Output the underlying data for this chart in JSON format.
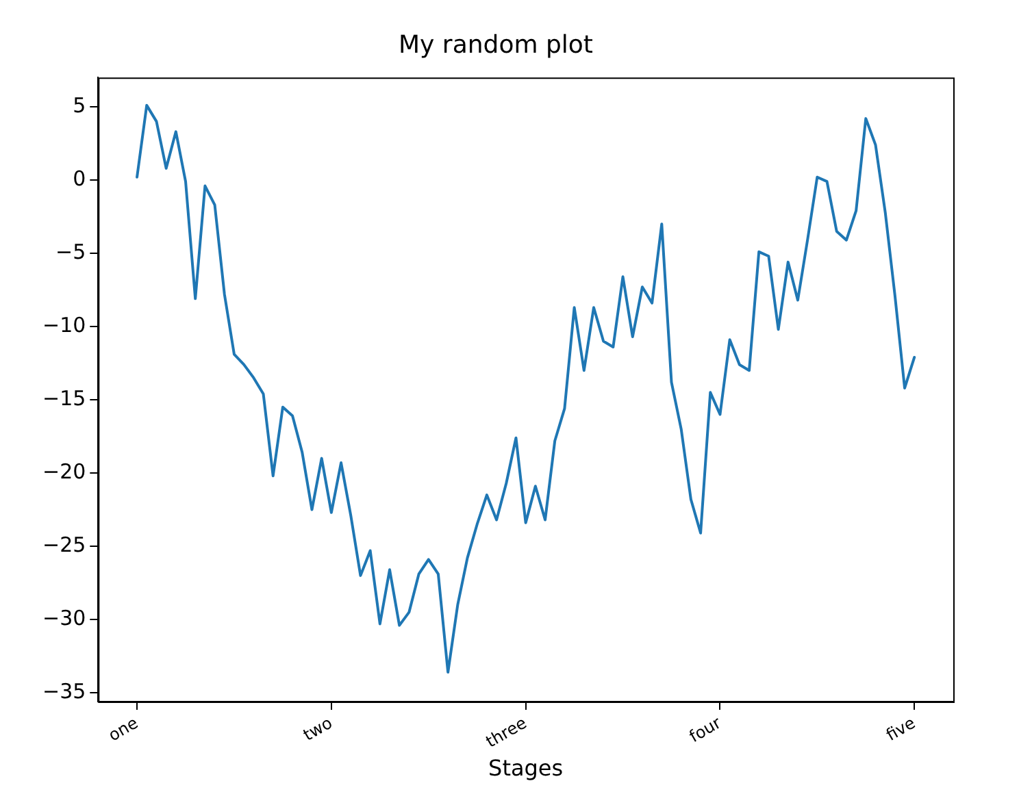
{
  "chart_data": {
    "type": "line",
    "title": "My random plot",
    "xlabel": "Stages",
    "categories": [
      "one",
      null,
      null,
      null,
      null,
      null,
      null,
      null,
      null,
      null,
      null,
      null,
      null,
      null,
      null,
      null,
      null,
      null,
      null,
      null,
      "two",
      null,
      null,
      null,
      null,
      null,
      null,
      null,
      null,
      null,
      null,
      null,
      null,
      null,
      null,
      null,
      null,
      null,
      null,
      null,
      "three",
      null,
      null,
      null,
      null,
      null,
      null,
      null,
      null,
      null,
      null,
      null,
      null,
      null,
      null,
      null,
      null,
      null,
      null,
      null,
      "four",
      null,
      null,
      null,
      null,
      null,
      null,
      null,
      null,
      null,
      null,
      null,
      null,
      null,
      null,
      null,
      null,
      null,
      null,
      null,
      "five"
    ],
    "ylim": [
      -35.6,
      7.0
    ],
    "yticks": [
      -35,
      -30,
      -25,
      -20,
      -15,
      -10,
      -5,
      0,
      5
    ],
    "grid": false,
    "legend": false,
    "marker": "none",
    "line_style": "solid",
    "series": [
      {
        "color": "#1f77b4",
        "values": [
          0.2,
          5.1,
          4.0,
          0.8,
          3.3,
          -0.1,
          -8.1,
          -0.4,
          -1.7,
          -7.8,
          -11.9,
          -12.6,
          -13.5,
          -14.6,
          -20.2,
          -15.5,
          -16.1,
          -18.6,
          -22.5,
          -19.0,
          -22.7,
          -19.3,
          -22.9,
          -27.0,
          -25.3,
          -30.3,
          -26.6,
          -30.4,
          -29.5,
          -26.9,
          -25.9,
          -26.9,
          -33.6,
          -29.0,
          -25.8,
          -23.5,
          -21.5,
          -23.2,
          -20.7,
          -17.6,
          -23.4,
          -20.9,
          -23.2,
          -17.8,
          -15.6,
          -8.7,
          -13.0,
          -8.7,
          -11.0,
          -11.4,
          -6.6,
          -10.7,
          -7.3,
          -8.4,
          -3.0,
          -13.8,
          -17.0,
          -21.8,
          -24.1,
          -14.5,
          -16.0,
          -10.9,
          -12.6,
          -13.0,
          -4.9,
          -5.2,
          -10.2,
          -5.6,
          -8.2,
          -4.1,
          0.2,
          -0.1,
          -3.5,
          -4.1,
          -2.1,
          4.2,
          2.4,
          -2.2,
          -7.9,
          -14.2,
          -12.1
        ]
      }
    ]
  }
}
